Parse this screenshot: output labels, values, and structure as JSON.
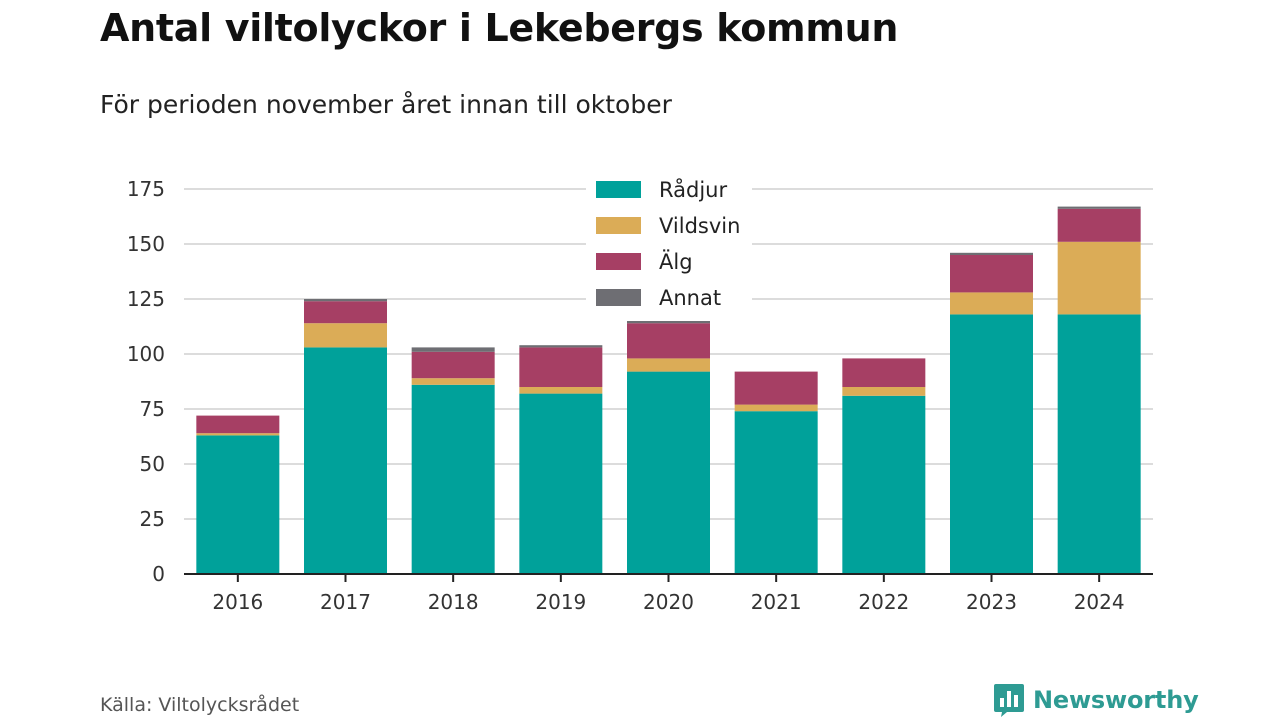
{
  "header": {
    "title": "Antal viltolyckor i Lekebergs kommun",
    "subtitle": "För perioden november året innan till oktober"
  },
  "footer": {
    "source": "Källa: Viltolycksrådet",
    "brand": "Newsworthy",
    "brand_icon": "bar-chart-bubble-icon"
  },
  "colors": {
    "Rådjur": "#00a19a",
    "Vildsvin": "#dbac57",
    "Älg": "#a63f64",
    "Annat": "#6e6e73",
    "grid": "#dcdcdc",
    "axis": "#222222",
    "brand": "#2e9b93"
  },
  "chart_data": {
    "type": "bar",
    "stacked": true,
    "categories": [
      "2016",
      "2017",
      "2018",
      "2019",
      "2020",
      "2021",
      "2022",
      "2023",
      "2024"
    ],
    "series": [
      {
        "name": "Rådjur",
        "values": [
          63,
          103,
          86,
          82,
          92,
          74,
          81,
          118,
          118
        ]
      },
      {
        "name": "Vildsvin",
        "values": [
          1,
          11,
          3,
          3,
          6,
          3,
          4,
          10,
          33
        ]
      },
      {
        "name": "Älg",
        "values": [
          8,
          10,
          12,
          18,
          16,
          15,
          13,
          17,
          15
        ]
      },
      {
        "name": "Annat",
        "values": [
          0,
          1,
          2,
          1,
          1,
          0,
          0,
          1,
          1
        ]
      }
    ],
    "ylim": [
      0,
      175
    ],
    "yticks": [
      0,
      25,
      50,
      75,
      100,
      125,
      150,
      175
    ],
    "grid": true,
    "legend": "top-center"
  }
}
